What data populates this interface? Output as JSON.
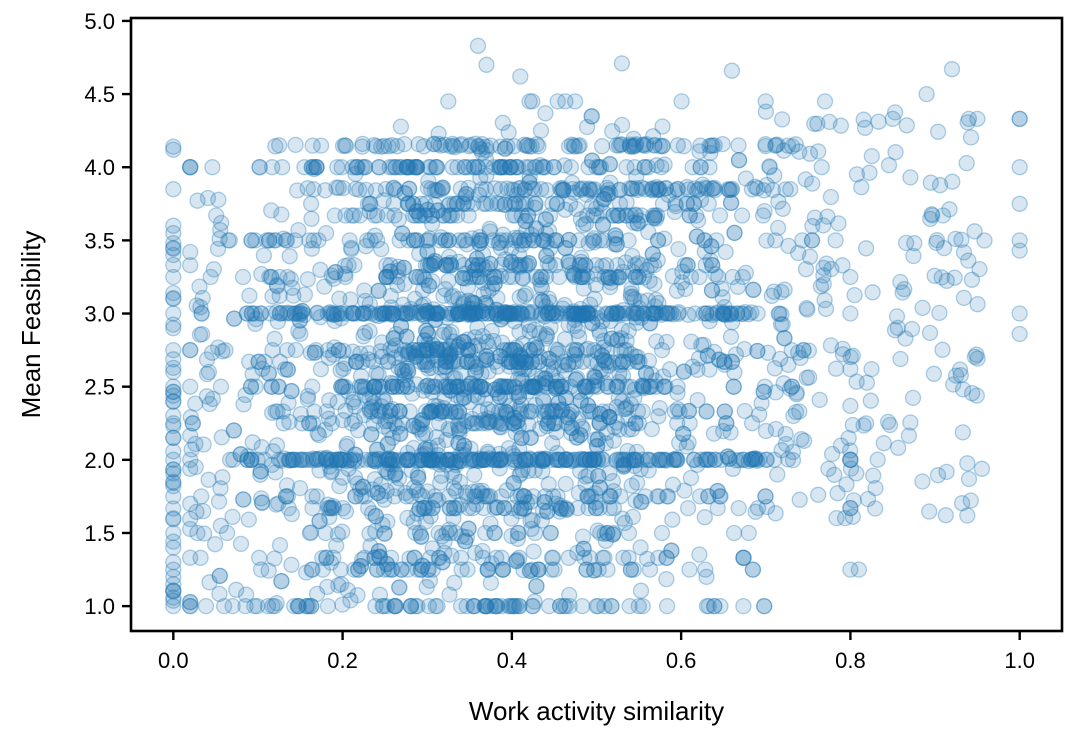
{
  "chart_data": {
    "type": "scatter",
    "title": "",
    "xlabel": "Work activity similarity",
    "ylabel": "Mean Feasibility",
    "xlim": [
      -0.05,
      1.05
    ],
    "ylim": [
      0.83,
      5.02
    ],
    "xticks": [
      0.0,
      0.2,
      0.4,
      0.6,
      0.8,
      1.0
    ],
    "xtick_labels": [
      "0.0",
      "0.2",
      "0.4",
      "0.6",
      "0.8",
      "1.0"
    ],
    "yticks": [
      1.0,
      1.5,
      2.0,
      2.5,
      3.0,
      3.5,
      4.0,
      4.5,
      5.0
    ],
    "ytick_labels": [
      "1.0",
      "1.5",
      "2.0",
      "2.5",
      "3.0",
      "3.5",
      "4.0",
      "4.5",
      "5.0"
    ],
    "grid": false,
    "legend": "none",
    "marker": "open circle, semi-transparent",
    "point_color": "#1f77b4",
    "point_alpha": 0.18,
    "series": [
      {
        "values": [
          [
            0.0,
            1.1
          ],
          [
            0.0,
            1.2
          ],
          [
            0.0,
            1.25
          ],
          [
            0.0,
            1.3
          ],
          [
            0.0,
            1.4
          ],
          [
            0.0,
            1.5
          ],
          [
            0.0,
            1.6
          ],
          [
            0.0,
            1.75
          ],
          [
            0.0,
            1.85
          ],
          [
            0.0,
            2.0
          ],
          [
            0.0,
            2.15
          ],
          [
            0.0,
            2.25
          ],
          [
            0.0,
            2.4
          ],
          [
            0.0,
            2.5
          ],
          [
            0.0,
            2.6
          ],
          [
            0.0,
            2.75
          ],
          [
            0.0,
            2.9
          ],
          [
            0.0,
            3.0
          ],
          [
            0.0,
            3.1
          ],
          [
            0.0,
            3.25
          ],
          [
            0.0,
            3.4
          ],
          [
            0.0,
            3.55
          ],
          [
            0.0,
            3.6
          ],
          [
            0.0,
            3.85
          ],
          [
            0.0,
            4.12
          ],
          [
            0.0,
            4.14
          ],
          [
            0.0,
            1.0
          ],
          [
            0.0,
            1.15
          ],
          [
            1.0,
            4.33
          ],
          [
            1.0,
            4.33
          ],
          [
            1.0,
            4.0
          ],
          [
            1.0,
            3.75
          ],
          [
            1.0,
            3.5
          ],
          [
            1.0,
            3.43
          ],
          [
            1.0,
            3.0
          ],
          [
            1.0,
            2.86
          ],
          [
            0.36,
            4.83
          ],
          [
            0.37,
            4.7
          ],
          [
            0.53,
            4.71
          ],
          [
            0.41,
            4.62
          ],
          [
            0.92,
            4.67
          ],
          [
            0.66,
            4.66
          ],
          [
            0.77,
            4.45
          ],
          [
            0.85,
            4.33
          ],
          [
            0.89,
            4.5
          ],
          [
            0.94,
            4.33
          ],
          [
            0.95,
            4.33
          ],
          [
            0.8,
            1.25
          ],
          [
            0.81,
            1.25
          ],
          [
            0.06,
            1.0
          ],
          [
            0.07,
            1.0
          ],
          [
            0.31,
            1.0
          ],
          [
            0.34,
            1.0
          ],
          [
            0.38,
            1.0
          ],
          [
            0.5,
            1.0
          ],
          [
            0.55,
            1.0
          ],
          [
            0.63,
            1.2
          ]
        ]
      }
    ]
  }
}
